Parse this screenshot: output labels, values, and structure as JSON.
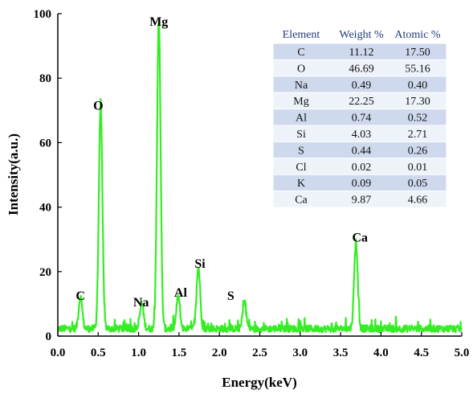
{
  "chart_data": {
    "type": "line",
    "xlabel": "Energy(keV)",
    "ylabel": "Intensity(a.u.)",
    "xlim": [
      0.0,
      5.0
    ],
    "ylim": [
      0,
      100
    ],
    "x_ticks": [
      "0.0",
      "0.5",
      "1.0",
      "1.5",
      "2.0",
      "2.5",
      "3.0",
      "3.5",
      "4.0",
      "4.5",
      "5.0"
    ],
    "y_ticks": [
      "0",
      "20",
      "40",
      "60",
      "80",
      "100"
    ],
    "line_color": "#33ee22",
    "grid": false,
    "peaks": [
      {
        "element": "C",
        "energy": 0.28,
        "intensity": 10
      },
      {
        "element": "O",
        "energy": 0.53,
        "intensity": 69
      },
      {
        "element": "Na",
        "energy": 1.04,
        "intensity": 8
      },
      {
        "element": "Mg",
        "energy": 1.25,
        "intensity": 95
      },
      {
        "element": "Al",
        "energy": 1.49,
        "intensity": 10
      },
      {
        "element": "Si",
        "energy": 1.74,
        "intensity": 19
      },
      {
        "element": "S",
        "energy": 2.31,
        "intensity": 8
      },
      {
        "element": "Ca",
        "energy": 3.69,
        "intensity": 27
      }
    ],
    "peak_labels": [
      {
        "text": "C",
        "x": 0.28,
        "y": 10
      },
      {
        "text": "O",
        "x": 0.5,
        "y": 69
      },
      {
        "text": "Na",
        "x": 1.03,
        "y": 8
      },
      {
        "text": "Mg",
        "x": 1.25,
        "y": 95
      },
      {
        "text": "Al",
        "x": 1.52,
        "y": 11
      },
      {
        "text": "Si",
        "x": 1.76,
        "y": 20
      },
      {
        "text": "S",
        "x": 2.14,
        "y": 10
      },
      {
        "text": "Ca",
        "x": 3.74,
        "y": 28
      }
    ],
    "table": {
      "headers": [
        "Element",
        "Weight %",
        "Atomic %"
      ],
      "rows": [
        [
          "C",
          "11.12",
          "17.50"
        ],
        [
          "O",
          "46.69",
          "55.16"
        ],
        [
          "Na",
          "0.49",
          "0.40"
        ],
        [
          "Mg",
          "22.25",
          "17.30"
        ],
        [
          "Al",
          "0.74",
          "0.52"
        ],
        [
          "Si",
          "4.03",
          "2.71"
        ],
        [
          "S",
          "0.44",
          "0.26"
        ],
        [
          "Cl",
          "0.02",
          "0.01"
        ],
        [
          "K",
          "0.09",
          "0.05"
        ],
        [
          "Ca",
          "9.87",
          "4.66"
        ]
      ],
      "row_colors": [
        "#cfd9ee",
        "#eef2f9"
      ],
      "header_color": "#1f3b78"
    }
  }
}
